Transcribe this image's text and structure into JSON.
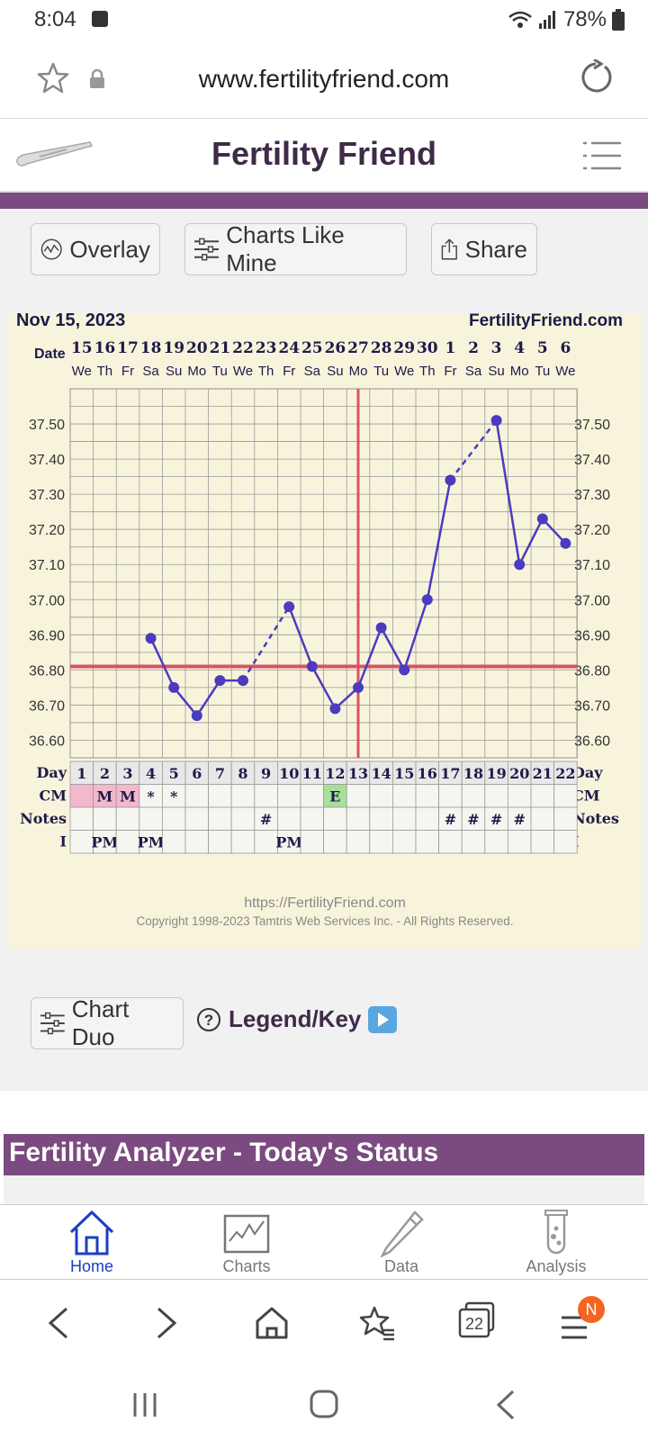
{
  "status": {
    "time": "8:04",
    "battery": "78%"
  },
  "browser": {
    "url": "www.fertilityfriend.com",
    "tab_count": "22",
    "menu_badge": "N"
  },
  "app": {
    "title": "Fertility Friend"
  },
  "actions": {
    "overlay": "Overlay",
    "charts_like_mine": "Charts Like Mine",
    "share": "Share",
    "chart_duo": "Chart Duo",
    "legend": "Legend/Key"
  },
  "chart_data": {
    "type": "line",
    "title": "Nov 15, 2023",
    "brand": "FertilityFriend.com",
    "date_row_label": "Date",
    "dates": [
      "15",
      "16",
      "17",
      "18",
      "19",
      "20",
      "21",
      "22",
      "23",
      "24",
      "25",
      "26",
      "27",
      "28",
      "29",
      "30",
      "1",
      "2",
      "3",
      "4",
      "5",
      "6"
    ],
    "weekdays": [
      "We",
      "Th",
      "Fr",
      "Sa",
      "Su",
      "Mo",
      "Tu",
      "We",
      "Th",
      "Fr",
      "Sa",
      "Su",
      "Mo",
      "Tu",
      "We",
      "Th",
      "Fr",
      "Sa",
      "Su",
      "Mo",
      "Tu",
      "We"
    ],
    "days": [
      "1",
      "2",
      "3",
      "4",
      "5",
      "6",
      "7",
      "8",
      "9",
      "10",
      "11",
      "12",
      "13",
      "14",
      "15",
      "16",
      "17",
      "18",
      "19",
      "20",
      "21",
      "22"
    ],
    "y_ticks": [
      "37.50",
      "37.40",
      "37.30",
      "37.20",
      "37.10",
      "37.00",
      "36.90",
      "36.80",
      "36.70",
      "36.60"
    ],
    "ylim": [
      36.55,
      37.6
    ],
    "temps": [
      null,
      null,
      null,
      36.89,
      36.75,
      36.67,
      36.77,
      36.77,
      null,
      36.98,
      36.81,
      36.69,
      36.75,
      36.92,
      36.8,
      37.0,
      37.34,
      null,
      37.51,
      37.1,
      37.23,
      37.16
    ],
    "coverline": 36.81,
    "ovulation_day": 13,
    "row_labels": {
      "day": "Day",
      "cm": "CM",
      "notes": "Notes",
      "i": "I"
    },
    "cm_row": [
      "",
      "M",
      "M",
      "*",
      "*",
      "",
      "",
      "",
      "",
      "",
      "",
      "E",
      "",
      "",
      "",
      "",
      "",
      "",
      "",
      "",
      "",
      ""
    ],
    "notes_row": [
      "",
      "",
      "",
      "",
      "",
      "",
      "",
      "",
      "#",
      "",
      "",
      "",
      "",
      "",
      "",
      "",
      "#",
      "#",
      "#",
      "#",
      "",
      ""
    ],
    "i_row": [
      "",
      "PM",
      "",
      "PM",
      "",
      "",
      "",
      "",
      "",
      "PM",
      "",
      "",
      "",
      "",
      "",
      "",
      "",
      "",
      "",
      "",
      "",
      ""
    ],
    "footer_url": "https://FertilityFriend.com",
    "copyright": "Copyright 1998-2023 Tamtris Web Services Inc. - All Rights Reserved.",
    "colors": {
      "line": "#4b3bbf",
      "cover": "#d9535f",
      "grid": "#999999",
      "bg": "#f8f4dc",
      "menses": "#f4b8cc",
      "egg": "#a8e09a"
    }
  },
  "analyzer": {
    "title": "Fertility Analyzer - Today's Status"
  },
  "tabs": [
    {
      "label": "Home",
      "icon": "home-icon"
    },
    {
      "label": "Charts",
      "icon": "chart-icon"
    },
    {
      "label": "Data",
      "icon": "pencil-icon"
    },
    {
      "label": "Analysis",
      "icon": "test-tube-icon"
    }
  ]
}
